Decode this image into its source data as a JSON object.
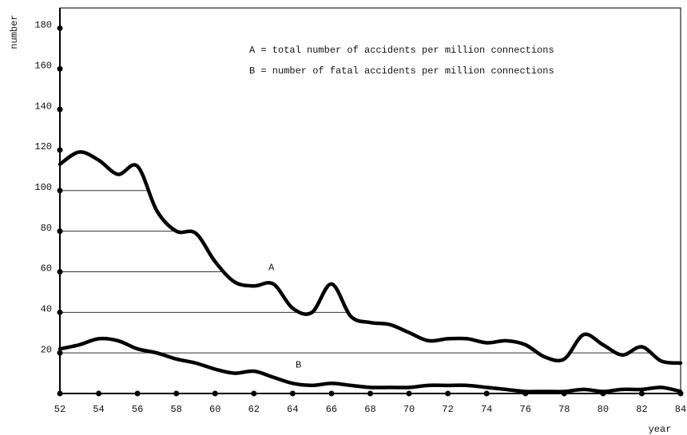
{
  "chart_data": {
    "type": "line",
    "x_label": "year",
    "y_label": "number",
    "x": [
      52,
      53,
      54,
      55,
      56,
      57,
      58,
      59,
      60,
      61,
      62,
      63,
      64,
      65,
      66,
      67,
      68,
      69,
      70,
      71,
      72,
      73,
      74,
      75,
      76,
      77,
      78,
      79,
      80,
      81,
      82,
      83,
      84
    ],
    "series": [
      {
        "name": "A = total number of accidents per million connections",
        "color": "#000000",
        "values": [
          113,
          119,
          115,
          108,
          112,
          90,
          80,
          79,
          65,
          55,
          53,
          54,
          42,
          40,
          54,
          38,
          35,
          34,
          30,
          26,
          27,
          27,
          25,
          26,
          24,
          18,
          17,
          29,
          24,
          19,
          23,
          16,
          15
        ]
      },
      {
        "name": "B = number of fatal accidents per million connections",
        "color": "#000000",
        "values": [
          22,
          24,
          27,
          26,
          22,
          20,
          17,
          15,
          12,
          10,
          11,
          8,
          5,
          4,
          5,
          4,
          3,
          3,
          3,
          4,
          4,
          4,
          3,
          2,
          1,
          1,
          1,
          2,
          1,
          2,
          2,
          3,
          1
        ]
      }
    ],
    "annotations": [
      "A",
      "B"
    ],
    "xlim": [
      52,
      84
    ],
    "xticks": [
      52,
      54,
      56,
      58,
      60,
      62,
      64,
      66,
      68,
      70,
      72,
      74,
      76,
      78,
      80,
      82,
      84
    ],
    "ylim": [
      0,
      190
    ],
    "yticks": [
      20,
      40,
      60,
      80,
      100,
      120,
      140,
      160,
      180
    ],
    "grid": true
  }
}
